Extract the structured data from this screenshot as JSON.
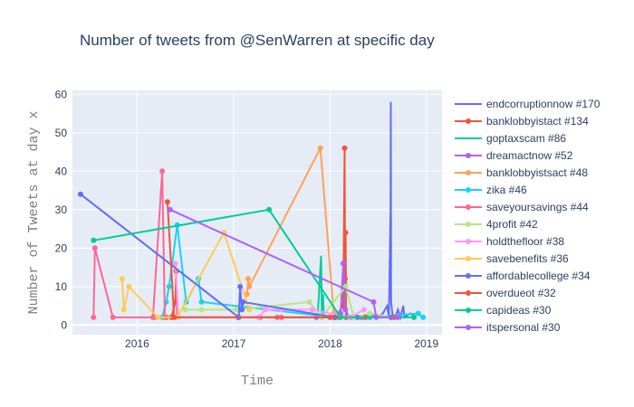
{
  "chart_data": {
    "type": "line",
    "title": "Number of tweets from @SenWarren at specific day",
    "xlabel": "Time",
    "ylabel": "Number of Tweets at day x",
    "xlim": [
      "2015-05-01",
      "2019-03-01"
    ],
    "ylim": [
      -2.5,
      61
    ],
    "x_ticks": [
      {
        "date": "2016-01-01",
        "label": "2016"
      },
      {
        "date": "2017-01-01",
        "label": "2017"
      },
      {
        "date": "2018-01-01",
        "label": "2018"
      },
      {
        "date": "2019-01-01",
        "label": "2019"
      }
    ],
    "y_ticks": [
      0,
      10,
      20,
      30,
      40,
      50,
      60
    ],
    "grid": true,
    "legend_position": "right",
    "series": [
      {
        "name": "endcorruptionnow #170",
        "color": "#636efa",
        "mode": "lines",
        "points": [
          [
            "2018-05-01",
            2
          ],
          [
            "2018-06-01",
            3
          ],
          [
            "2018-07-01",
            2
          ],
          [
            "2018-07-20",
            3
          ],
          [
            "2018-08-05",
            5
          ],
          [
            "2018-08-12",
            2
          ],
          [
            "2018-08-18",
            30
          ],
          [
            "2018-08-19",
            58
          ],
          [
            "2018-08-20",
            6
          ],
          [
            "2018-08-25",
            3
          ],
          [
            "2018-09-05",
            2
          ],
          [
            "2018-09-15",
            4
          ],
          [
            "2018-09-25",
            2
          ],
          [
            "2018-10-05",
            5
          ],
          [
            "2018-10-10",
            2
          ],
          [
            "2018-11-01",
            3
          ],
          [
            "2018-11-20",
            2
          ]
        ]
      },
      {
        "name": "banklobbyistact #134",
        "color": "#ef553b",
        "mode": "lines+markers",
        "points": [
          [
            "2016-04-20",
            2
          ],
          [
            "2016-05-10",
            2
          ],
          [
            "2016-05-25",
            6
          ],
          [
            "2016-05-28",
            14
          ],
          [
            "2016-06-01",
            2
          ],
          [
            "2017-04-10",
            2
          ],
          [
            "2017-12-01",
            2
          ],
          [
            "2018-01-20",
            2
          ],
          [
            "2018-02-20",
            5
          ],
          [
            "2018-02-25",
            46
          ],
          [
            "2018-02-27",
            12
          ],
          [
            "2018-03-01",
            24
          ],
          [
            "2018-03-03",
            2
          ],
          [
            "2018-03-20",
            2
          ]
        ]
      },
      {
        "name": "goptaxscam #86",
        "color": "#00cc96",
        "mode": "lines",
        "points": [
          [
            "2017-11-15",
            2
          ],
          [
            "2017-11-28",
            18
          ],
          [
            "2017-12-01",
            3
          ],
          [
            "2017-12-05",
            8
          ],
          [
            "2017-12-08",
            3
          ],
          [
            "2017-12-20",
            2
          ]
        ]
      },
      {
        "name": "dreamactnow #52",
        "color": "#ab63fa",
        "mode": "lines+markers",
        "points": [
          [
            "2017-11-10",
            2
          ],
          [
            "2018-01-15",
            2
          ],
          [
            "2018-02-10",
            3
          ],
          [
            "2018-02-20",
            16
          ],
          [
            "2018-02-28",
            4
          ],
          [
            "2018-03-15",
            2
          ],
          [
            "2018-05-01",
            2
          ],
          [
            "2018-06-01",
            2
          ]
        ]
      },
      {
        "name": "banklobbyistsact #48",
        "color": "#ffa15a",
        "mode": "lines+markers",
        "points": [
          [
            "2017-02-20",
            8
          ],
          [
            "2017-02-25",
            12
          ],
          [
            "2017-03-01",
            10
          ],
          [
            "2017-11-25",
            46
          ],
          [
            "2018-01-15",
            3
          ],
          [
            "2018-02-01",
            2
          ]
        ]
      },
      {
        "name": "zika #46",
        "color": "#19d3f3",
        "mode": "lines+markers",
        "points": [
          [
            "2016-03-10",
            2
          ],
          [
            "2016-04-05",
            2
          ],
          [
            "2016-04-20",
            6
          ],
          [
            "2016-05-01",
            10
          ],
          [
            "2016-06-01",
            26
          ],
          [
            "2016-07-05",
            6
          ],
          [
            "2016-08-20",
            12
          ],
          [
            "2016-09-01",
            6
          ],
          [
            "2018-01-20",
            2
          ],
          [
            "2018-06-01",
            2
          ],
          [
            "2018-12-01",
            3
          ],
          [
            "2018-12-20",
            2
          ]
        ]
      },
      {
        "name": "saveyoursavings #44",
        "color": "#ff6692",
        "mode": "lines+markers",
        "points": [
          [
            "2015-07-20",
            2
          ],
          [
            "2015-07-25",
            20
          ],
          [
            "2015-10-01",
            2
          ],
          [
            "2016-03-01",
            2
          ],
          [
            "2016-04-05",
            40
          ],
          [
            "2016-04-15",
            2
          ],
          [
            "2017-06-15",
            2
          ],
          [
            "2017-07-01",
            2
          ],
          [
            "2018-02-01",
            2
          ]
        ]
      },
      {
        "name": "4profit #42",
        "color": "#b6e880",
        "mode": "lines+markers",
        "points": [
          [
            "2016-07-01",
            4
          ],
          [
            "2016-09-01",
            4
          ],
          [
            "2017-01-10",
            4
          ],
          [
            "2017-10-15",
            6
          ],
          [
            "2017-12-01",
            2
          ],
          [
            "2018-03-01",
            10
          ],
          [
            "2018-04-01",
            2
          ],
          [
            "2018-06-01",
            3
          ],
          [
            "2018-09-01",
            2
          ]
        ]
      },
      {
        "name": "holdthefloor #38",
        "color": "#ff97ff",
        "mode": "lines+markers",
        "points": [
          [
            "2016-05-25",
            16
          ],
          [
            "2016-06-05",
            2
          ],
          [
            "2017-01-15",
            2
          ],
          [
            "2017-04-05",
            2
          ],
          [
            "2017-05-01",
            4
          ],
          [
            "2017-07-01",
            4
          ],
          [
            "2017-10-25",
            4
          ],
          [
            "2018-03-15",
            2
          ],
          [
            "2018-05-10",
            4
          ]
        ]
      },
      {
        "name": "savebenefits #36",
        "color": "#fecb52",
        "mode": "lines+markers",
        "points": [
          [
            "2015-11-05",
            12
          ],
          [
            "2015-11-12",
            4
          ],
          [
            "2015-12-01",
            10
          ],
          [
            "2016-03-20",
            2
          ],
          [
            "2016-06-01",
            2
          ],
          [
            "2016-11-25",
            24
          ],
          [
            "2017-03-01",
            4
          ]
        ]
      },
      {
        "name": "affordablecollege #34",
        "color": "#636efa",
        "mode": "lines+markers",
        "points": [
          [
            "2015-06-01",
            34
          ],
          [
            "2017-01-20",
            2
          ],
          [
            "2017-01-25",
            10
          ],
          [
            "2017-02-01",
            4
          ],
          [
            "2017-02-05",
            6
          ],
          [
            "2018-01-20",
            2
          ],
          [
            "2018-04-15",
            2
          ],
          [
            "2018-08-20",
            2
          ]
        ]
      },
      {
        "name": "overdueot #32",
        "color": "#ef553b",
        "mode": "lines+markers",
        "points": [
          [
            "2016-04-25",
            32
          ],
          [
            "2016-05-20",
            2
          ],
          [
            "2018-01-01",
            2
          ],
          [
            "2018-05-15",
            2
          ],
          [
            "2018-09-01",
            2
          ]
        ]
      },
      {
        "name": "capideas #30",
        "color": "#00cc96",
        "mode": "lines+markers",
        "points": [
          [
            "2015-07-20",
            22
          ],
          [
            "2017-05-15",
            30
          ],
          [
            "2018-02-10",
            2
          ],
          [
            "2018-11-15",
            2
          ]
        ]
      },
      {
        "name": "itspersonal #30",
        "color": "#ab63fa",
        "mode": "lines+markers",
        "points": [
          [
            "2016-05-05",
            30
          ],
          [
            "2018-06-15",
            6
          ],
          [
            "2018-06-25",
            2
          ],
          [
            "2018-09-15",
            2
          ]
        ]
      }
    ]
  }
}
